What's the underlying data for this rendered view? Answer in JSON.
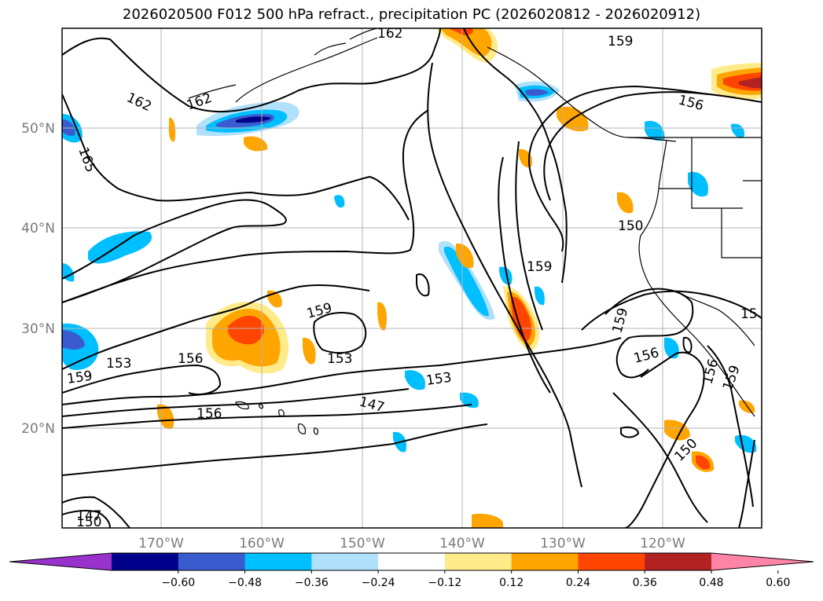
{
  "title": "2026020500 F012 500 hPa refract., precipitation PC (2026020812 - 2026020912)",
  "lat_labels": [
    "50°N",
    "40°N",
    "30°N",
    "20°N"
  ],
  "lon_labels": [
    "170°W",
    "160°W",
    "150°W",
    "140°W",
    "130°W",
    "120°W"
  ],
  "colorbar": {
    "tick_labels": [
      "−0.60",
      "−0.48",
      "−0.36",
      "−0.24",
      "−0.12",
      "0.12",
      "0.24",
      "0.36",
      "0.48",
      "0.60"
    ],
    "colors": [
      "#9932cc",
      "#00008b",
      "#3a5bcf",
      "#00bfff",
      "#b0e0fa",
      "#ffffff",
      "#ffeb8a",
      "#ffa500",
      "#ff4500",
      "#b22222",
      "#ff85a8"
    ]
  },
  "contour_labels": [
    "162",
    "159",
    "162",
    "162",
    "156",
    "165",
    "150",
    "159",
    "159",
    "153",
    "156",
    "153",
    "153",
    "159",
    "147",
    "156",
    "156",
    "159",
    "150",
    "147",
    "150",
    "15"
  ]
}
